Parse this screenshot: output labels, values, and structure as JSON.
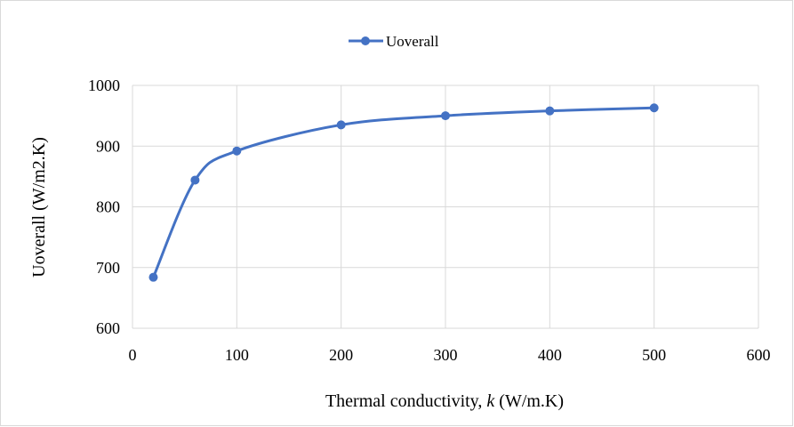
{
  "chart_data": {
    "type": "line",
    "title": "",
    "xlabel_prefix": "Thermal conductivity, ",
    "xlabel_var": "k",
    "xlabel_suffix": " (W/m.K)",
    "ylabel": "Uoverall (W/m2.K)",
    "xlim": [
      0,
      600
    ],
    "ylim": [
      600,
      1000
    ],
    "xticks": [
      0,
      100,
      200,
      300,
      400,
      500,
      600
    ],
    "yticks": [
      600,
      700,
      800,
      900,
      1000
    ],
    "grid": true,
    "legend": "top-center",
    "smooth": true,
    "series": [
      {
        "name": "Uoverall",
        "color": "#4472c4",
        "x": [
          20,
          60,
          100,
          200,
          300,
          400,
          500
        ],
        "y": [
          684,
          844,
          892,
          935,
          950,
          958,
          963
        ]
      }
    ]
  }
}
